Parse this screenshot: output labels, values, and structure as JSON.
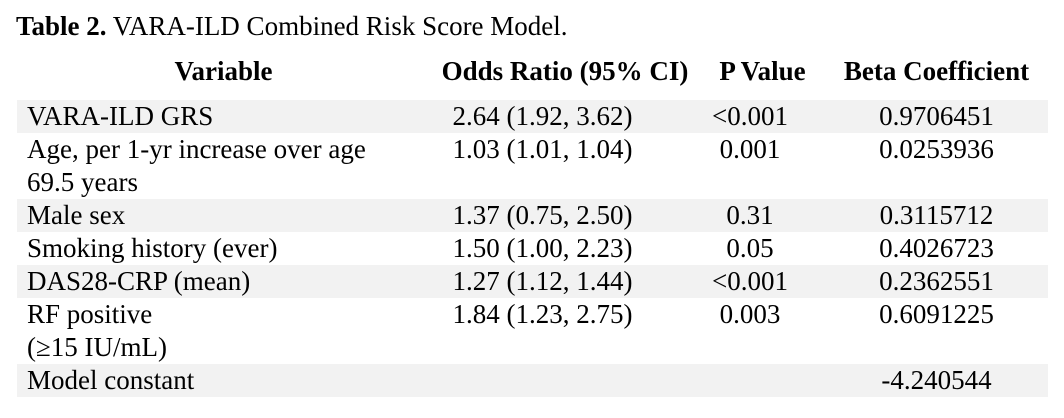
{
  "title": {
    "prefix": "Table 2.",
    "text": " VARA-ILD Combined Risk Score Model."
  },
  "table": {
    "headers": {
      "variable": "Variable",
      "odds_ratio": "Odds Ratio (95% CI)",
      "p_value": "P Value",
      "beta": "Beta Coefficient"
    },
    "rows": [
      {
        "variable_lines": [
          "VARA-ILD GRS"
        ],
        "odds_ratio": "2.64 (1.92, 3.62)",
        "p_value": "<0.001",
        "beta": "0.9706451"
      },
      {
        "variable_lines": [
          "Age, per 1-yr increase over age",
          "69.5 years"
        ],
        "odds_ratio": "1.03 (1.01, 1.04)",
        "p_value": "0.001",
        "beta": "0.0253936"
      },
      {
        "variable_lines": [
          "Male sex"
        ],
        "odds_ratio": "1.37 (0.75, 2.50)",
        "p_value": "0.31",
        "beta": "0.3115712"
      },
      {
        "variable_lines": [
          "Smoking history (ever)"
        ],
        "odds_ratio": "1.50 (1.00, 2.23)",
        "p_value": "0.05",
        "beta": "0.4026723"
      },
      {
        "variable_lines": [
          "DAS28-CRP (mean)"
        ],
        "odds_ratio": "1.27 (1.12, 1.44)",
        "p_value": "<0.001",
        "beta": "0.2362551"
      },
      {
        "variable_lines": [
          "RF positive",
          "(≥15 IU/mL)"
        ],
        "odds_ratio": "1.84 (1.23, 2.75)",
        "p_value": "0.003",
        "beta": "0.6091225"
      },
      {
        "variable_lines": [
          "Model constant"
        ],
        "odds_ratio": "",
        "p_value": "",
        "beta": "-4.240544"
      }
    ]
  },
  "colors": {
    "background": "#ffffff",
    "text": "#000000",
    "row_shade": "#f2f2f2"
  }
}
